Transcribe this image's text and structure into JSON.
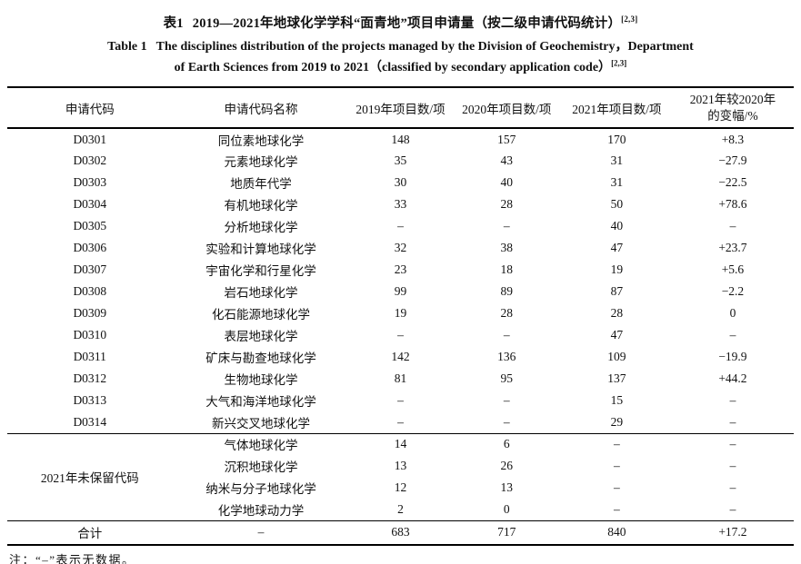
{
  "page": {
    "background_color": "#ffffff",
    "text_color": "#111111"
  },
  "caption": {
    "cn": {
      "label": "表1",
      "text": "2019—2021年地球化学学科“面青地”项目申请量（按二级申请代码统计）",
      "sup": "[2,3]"
    },
    "en": {
      "label": "Table 1",
      "line1": "The disciplines distribution of the projects managed by the Division of Geochemistry，Department",
      "line2": "of Earth Sciences from 2019 to 2021（classified by secondary application code）",
      "sup": "[2,3]"
    }
  },
  "table": {
    "header": {
      "col_code": "申请代码",
      "col_name": "申请代码名称",
      "col_2019": "2019年项目数/项",
      "col_2020": "2020年项目数/项",
      "col_2021": "2021年项目数/项",
      "col_change_line1": "2021年较2020年",
      "col_change_line2": "的变幅/%"
    },
    "rows": [
      {
        "code": "D0301",
        "name": "同位素地球化学",
        "y2019": "148",
        "y2020": "157",
        "y2021": "170",
        "change": "+8.3"
      },
      {
        "code": "D0302",
        "name": "元素地球化学",
        "y2019": "35",
        "y2020": "43",
        "y2021": "31",
        "change": "−27.9"
      },
      {
        "code": "D0303",
        "name": "地质年代学",
        "y2019": "30",
        "y2020": "40",
        "y2021": "31",
        "change": "−22.5"
      },
      {
        "code": "D0304",
        "name": "有机地球化学",
        "y2019": "33",
        "y2020": "28",
        "y2021": "50",
        "change": "+78.6"
      },
      {
        "code": "D0305",
        "name": "分析地球化学",
        "y2019": "–",
        "y2020": "–",
        "y2021": "40",
        "change": "–"
      },
      {
        "code": "D0306",
        "name": "实验和计算地球化学",
        "y2019": "32",
        "y2020": "38",
        "y2021": "47",
        "change": "+23.7"
      },
      {
        "code": "D0307",
        "name": "宇宙化学和行星化学",
        "y2019": "23",
        "y2020": "18",
        "y2021": "19",
        "change": "+5.6"
      },
      {
        "code": "D0308",
        "name": "岩石地球化学",
        "y2019": "99",
        "y2020": "89",
        "y2021": "87",
        "change": "−2.2"
      },
      {
        "code": "D0309",
        "name": "化石能源地球化学",
        "y2019": "19",
        "y2020": "28",
        "y2021": "28",
        "change": "0"
      },
      {
        "code": "D0310",
        "name": "表层地球化学",
        "y2019": "–",
        "y2020": "–",
        "y2021": "47",
        "change": "–"
      },
      {
        "code": "D0311",
        "name": "矿床与勘查地球化学",
        "y2019": "142",
        "y2020": "136",
        "y2021": "109",
        "change": "−19.9"
      },
      {
        "code": "D0312",
        "name": "生物地球化学",
        "y2019": "81",
        "y2020": "95",
        "y2021": "137",
        "change": "+44.2"
      },
      {
        "code": "D0313",
        "name": "大气和海洋地球化学",
        "y2019": "–",
        "y2020": "–",
        "y2021": "15",
        "change": "–"
      },
      {
        "code": "D0314",
        "name": "新兴交叉地球化学",
        "y2019": "–",
        "y2020": "–",
        "y2021": "29",
        "change": "–"
      }
    ],
    "unreserved": {
      "label": "2021年未保留代码",
      "rows": [
        {
          "name": "气体地球化学",
          "y2019": "14",
          "y2020": "6",
          "y2021": "–",
          "change": "–"
        },
        {
          "name": "沉积地球化学",
          "y2019": "13",
          "y2020": "26",
          "y2021": "–",
          "change": "–"
        },
        {
          "name": "纳米与分子地球化学",
          "y2019": "12",
          "y2020": "13",
          "y2021": "–",
          "change": "–"
        },
        {
          "name": "化学地球动力学",
          "y2019": "2",
          "y2020": "0",
          "y2021": "–",
          "change": "–"
        }
      ]
    },
    "total": {
      "label": "合计",
      "name": "–",
      "y2019": "683",
      "y2020": "717",
      "y2021": "840",
      "change": "+17.2"
    },
    "note": "注：“–”表示无数据。"
  }
}
